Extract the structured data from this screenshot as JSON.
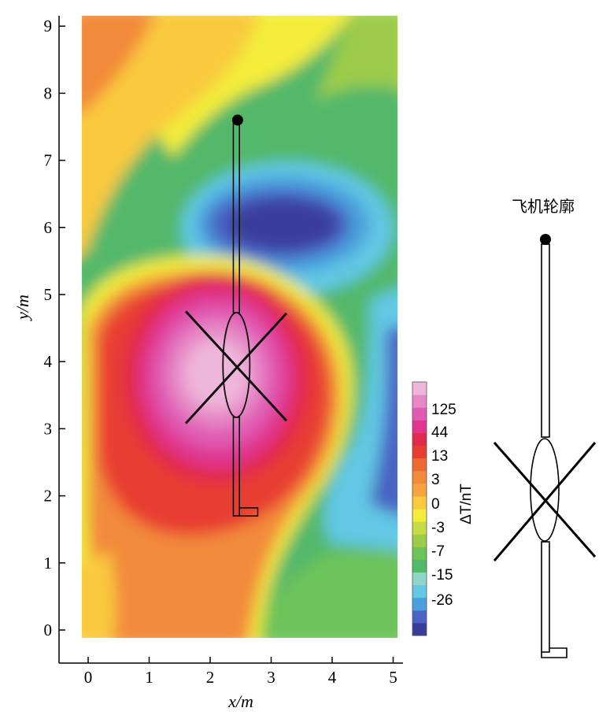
{
  "chart_data": {
    "type": "heatmap",
    "title": "",
    "xlabel": "x/m",
    "ylabel": "y/m",
    "xlim": [
      -0.45,
      5.2
    ],
    "ylim": [
      -0.5,
      9.2
    ],
    "x_ticks": [
      "0",
      "1",
      "2",
      "3",
      "4",
      "5"
    ],
    "y_ticks": [
      "0",
      "1",
      "2",
      "3",
      "4",
      "5",
      "6",
      "7",
      "8",
      "9"
    ],
    "colorbar": {
      "label": "ΔT/nT",
      "tick_labels": [
        "125",
        "44",
        "13",
        "3",
        "0",
        "-3",
        "-7",
        "-15",
        "-26"
      ],
      "colors": [
        "#3a3c9a",
        "#4a63c4",
        "#4a9fdc",
        "#62c8e4",
        "#8fd5c9",
        "#52b86a",
        "#6dc25a",
        "#9ccc4a",
        "#c7db44",
        "#f3ec3a",
        "#f9c93e",
        "#f7a43e",
        "#f28a3b",
        "#ee6a35",
        "#e83e31",
        "#e22a4a",
        "#e0368f",
        "#e05cb4",
        "#e688c6",
        "#eeb6da"
      ]
    },
    "features": [
      {
        "name": "positive-anomaly",
        "center": [
          2.2,
          3.8
        ],
        "max_level": "125"
      },
      {
        "name": "negative-anomaly",
        "center": [
          2.9,
          6.1
        ],
        "min_level": "-26"
      }
    ],
    "outline_overlay": {
      "nose": [
        2.45,
        7.6
      ],
      "fuselage_x": [
        2.38,
        2.48
      ],
      "fuselage_y": [
        1.7,
        7.55
      ],
      "body_ellipse": {
        "cx": 2.43,
        "cy": 3.95,
        "rx": 0.22,
        "ry": 0.78
      },
      "rotor_lines": [
        [
          [
            1.6,
            4.75
          ],
          [
            3.25,
            3.12
          ]
        ],
        [
          [
            1.6,
            3.08
          ],
          [
            3.25,
            4.72
          ]
        ]
      ],
      "tail": [
        [
          2.38,
          1.7
        ],
        [
          2.78,
          1.7
        ],
        [
          2.78,
          1.82
        ],
        [
          2.48,
          1.82
        ]
      ]
    }
  },
  "outline_panel": {
    "title": "飞机轮廓"
  }
}
